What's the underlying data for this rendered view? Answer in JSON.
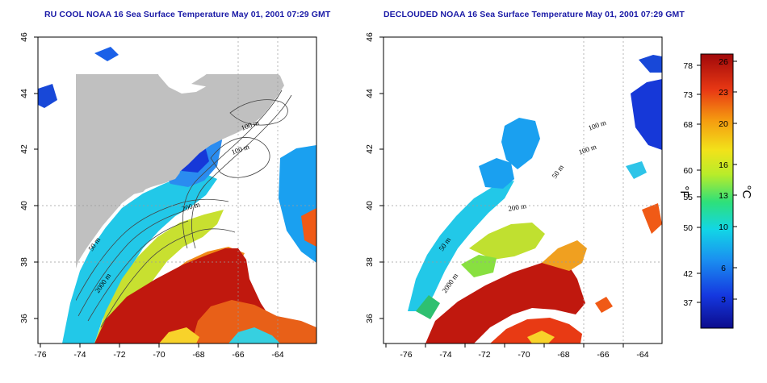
{
  "panels": [
    {
      "id": "left",
      "title": "RU COOL NOAA 16 Sea Surface Temperature May 01, 2001 07:29 GMT",
      "contour_labels": [
        "100 m",
        "100 m",
        "200 m",
        "50 m",
        "2000 m"
      ]
    },
    {
      "id": "right",
      "title": "DECLOUDED NOAA 16 Sea Surface Temperature May 01, 2001 07:29 GMT",
      "contour_labels": [
        "100 m",
        "100 m",
        "50 m",
        "200 m",
        "50 m",
        "2000 m"
      ]
    }
  ],
  "axes": {
    "lon_ticks": [
      "-76",
      "-74",
      "-72",
      "-70",
      "-68",
      "-66",
      "-64"
    ],
    "lat_ticks": [
      "36",
      "38",
      "40",
      "42",
      "44",
      "46"
    ]
  },
  "colorbar": {
    "fahrenheit_ticks": [
      "78",
      "73",
      "68",
      "60",
      "55",
      "50",
      "42",
      "37"
    ],
    "celsius_ticks": [
      "26",
      "23",
      "20",
      "16",
      "13",
      "10",
      "6",
      "3"
    ],
    "fahrenheit_label": "°F",
    "celsius_label": "°C"
  },
  "colors": {
    "land": "#c0c0c0",
    "title": "#1a1aa6",
    "warm": "#b01010",
    "cold": "#1830d0"
  }
}
